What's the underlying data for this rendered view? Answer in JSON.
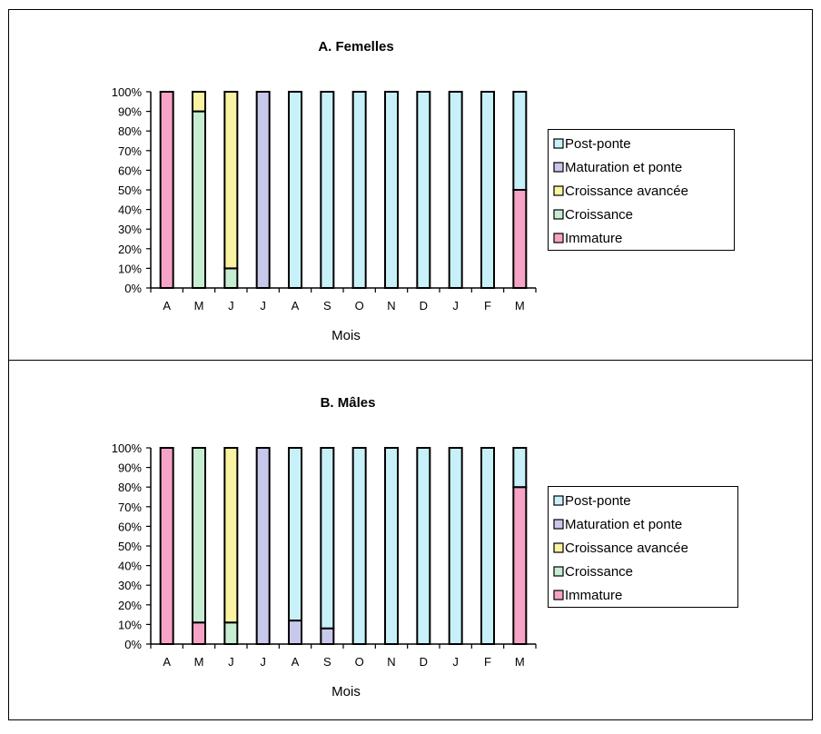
{
  "stage_colors": {
    "Immature": "#f6a3c6",
    "Croissance": "#c6ecd1",
    "Croissance avancée": "#f9f3a2",
    "Maturation et ponte": "#c8c7ec",
    "Post-ponte": "#c8f0f9"
  },
  "legend_order": [
    "Post-ponte",
    "Maturation et ponte",
    "Croissance avancée",
    "Croissance",
    "Immature"
  ],
  "stack_order": [
    "Immature",
    "Croissance",
    "Croissance avancée",
    "Maturation et ponte",
    "Post-ponte"
  ],
  "chart_data": [
    {
      "type": "bar",
      "stacked": "percent",
      "title": "A. Femelles",
      "xlabel": "Mois",
      "ylabel": "",
      "ylim": [
        0,
        100
      ],
      "yticks": [
        "0%",
        "10%",
        "20%",
        "30%",
        "40%",
        "50%",
        "60%",
        "70%",
        "80%",
        "90%",
        "100%"
      ],
      "categories": [
        "A",
        "M",
        "J",
        "J",
        "A",
        "S",
        "O",
        "N",
        "D",
        "J",
        "F",
        "M"
      ],
      "legend_position": "right",
      "series": [
        {
          "name": "Immature",
          "values": [
            100,
            0,
            0,
            0,
            0,
            0,
            0,
            0,
            0,
            0,
            0,
            50
          ]
        },
        {
          "name": "Croissance",
          "values": [
            0,
            90,
            10,
            0,
            0,
            0,
            0,
            0,
            0,
            0,
            0,
            0
          ]
        },
        {
          "name": "Croissance avancée",
          "values": [
            0,
            10,
            90,
            0,
            0,
            0,
            0,
            0,
            0,
            0,
            0,
            0
          ]
        },
        {
          "name": "Maturation et ponte",
          "values": [
            0,
            0,
            0,
            100,
            0,
            0,
            0,
            0,
            0,
            0,
            0,
            0
          ]
        },
        {
          "name": "Post-ponte",
          "values": [
            0,
            0,
            0,
            0,
            100,
            100,
            100,
            100,
            100,
            100,
            100,
            50
          ]
        }
      ]
    },
    {
      "type": "bar",
      "stacked": "percent",
      "title": "B. Mâles",
      "xlabel": "Mois",
      "ylabel": "",
      "ylim": [
        0,
        100
      ],
      "yticks": [
        "0%",
        "10%",
        "20%",
        "30%",
        "40%",
        "50%",
        "60%",
        "70%",
        "80%",
        "90%",
        "100%"
      ],
      "categories": [
        "A",
        "M",
        "J",
        "J",
        "A",
        "S",
        "O",
        "N",
        "D",
        "J",
        "F",
        "M"
      ],
      "legend_position": "right",
      "series": [
        {
          "name": "Immature",
          "values": [
            100,
            11,
            0,
            0,
            0,
            0,
            0,
            0,
            0,
            0,
            0,
            80
          ]
        },
        {
          "name": "Croissance",
          "values": [
            0,
            89,
            11,
            0,
            0,
            0,
            0,
            0,
            0,
            0,
            0,
            0
          ]
        },
        {
          "name": "Croissance avancée",
          "values": [
            0,
            0,
            89,
            0,
            0,
            0,
            0,
            0,
            0,
            0,
            0,
            0
          ]
        },
        {
          "name": "Maturation et ponte",
          "values": [
            0,
            0,
            0,
            100,
            12,
            8,
            0,
            0,
            0,
            0,
            0,
            0
          ]
        },
        {
          "name": "Post-ponte",
          "values": [
            0,
            0,
            0,
            0,
            88,
            92,
            100,
            100,
            100,
            100,
            100,
            20
          ]
        }
      ]
    }
  ]
}
